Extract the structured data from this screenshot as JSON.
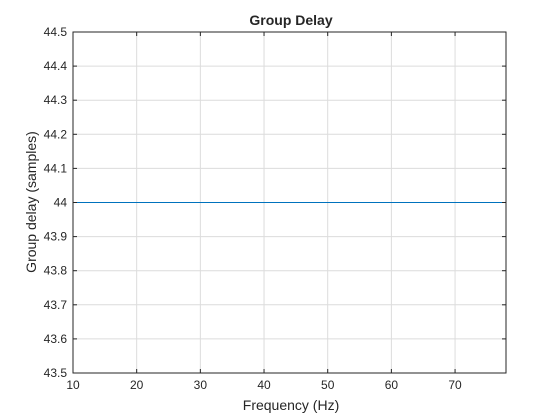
{
  "chart_data": {
    "type": "line",
    "title": "Group Delay",
    "xlabel": "Frequency (Hz)",
    "ylabel": "Group delay (samples)",
    "xlim": [
      10,
      78
    ],
    "ylim": [
      43.5,
      44.5
    ],
    "xticks": [
      10,
      20,
      30,
      40,
      50,
      60,
      70
    ],
    "yticks": [
      43.5,
      43.6,
      43.7,
      43.8,
      43.9,
      44,
      44.1,
      44.2,
      44.3,
      44.4,
      44.5
    ],
    "grid": true,
    "series": [
      {
        "color": "#0072bd",
        "x": [
          10,
          78
        ],
        "y": [
          44,
          44
        ]
      }
    ]
  }
}
